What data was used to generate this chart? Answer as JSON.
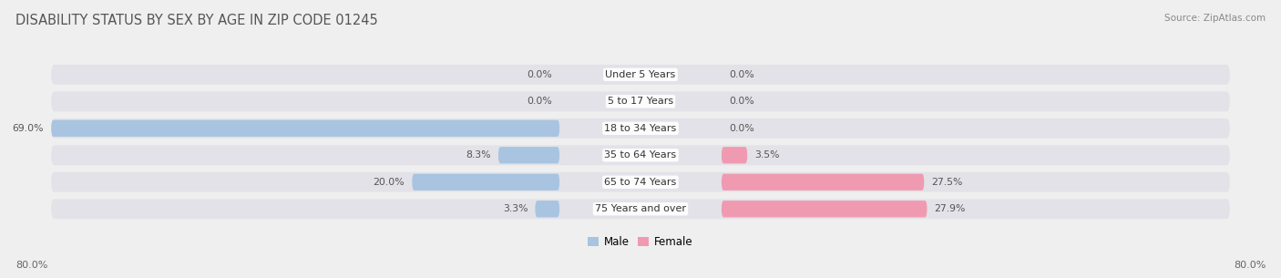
{
  "title": "DISABILITY STATUS BY SEX BY AGE IN ZIP CODE 01245",
  "source": "Source: ZipAtlas.com",
  "categories": [
    "Under 5 Years",
    "5 to 17 Years",
    "18 to 34 Years",
    "35 to 64 Years",
    "65 to 74 Years",
    "75 Years and over"
  ],
  "male_values": [
    0.0,
    0.0,
    69.0,
    8.3,
    20.0,
    3.3
  ],
  "female_values": [
    0.0,
    0.0,
    0.0,
    3.5,
    27.5,
    27.9
  ],
  "male_color": "#a8c4e0",
  "female_color": "#f09ab2",
  "male_label": "Male",
  "female_label": "Female",
  "axis_limit": 80.0,
  "bg_color": "#efefef",
  "bar_bg_color": "#e2e2e8",
  "title_color": "#555555",
  "value_label_color": "#555555",
  "category_label_color": "#333333",
  "bar_height": 0.62,
  "axis_label_left": "80.0%",
  "axis_label_right": "80.0%"
}
